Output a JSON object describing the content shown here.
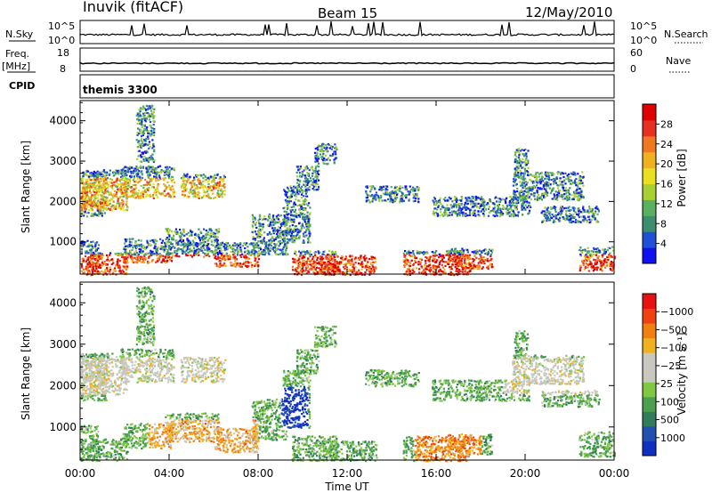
{
  "header": {
    "station": "Inuvik (fitACF)",
    "beam": "Beam 15",
    "date": "12/May/2010"
  },
  "strips": {
    "nsky_label": "N.Sky",
    "nsky_ticks": [
      "10^5",
      "10^0"
    ],
    "nsearch_label": "N.Search",
    "nsearch_ticks": [
      "10^5",
      "10^0"
    ],
    "freq_label": "Freq.",
    "freq_unit": "[MHz]",
    "freq_ticks": [
      "18",
      "8"
    ],
    "nave_label": "Nave",
    "nave_ticks": [
      "60",
      "0"
    ],
    "cpid_label": "CPID",
    "cpid_value": "themis 3300"
  },
  "chart_data": [
    {
      "type": "heatmap",
      "quantity": "Power",
      "ylabel": "Slant Range [km]",
      "yticks": [
        1000,
        2000,
        3000,
        4000
      ],
      "ylim": [
        200,
        4500
      ],
      "xlim": [
        0,
        24
      ],
      "colorbar": {
        "label": "Power [dB]",
        "ticks": [
          "4",
          "8",
          "12",
          "16",
          "20",
          "24",
          "28"
        ],
        "colors": [
          "#1010f0",
          "#2050d8",
          "#3b8f6e",
          "#58b060",
          "#a8d030",
          "#e8e020",
          "#f0b020",
          "#f07820",
          "#e83020",
          "#e00000"
        ]
      }
    },
    {
      "type": "heatmap",
      "quantity": "Velocity",
      "ylabel": "Slant Range [km]",
      "yticks": [
        1000,
        2000,
        3000,
        4000
      ],
      "ylim": [
        200,
        4500
      ],
      "xlim": [
        0,
        24
      ],
      "xlabel": "Time UT",
      "xticks": [
        "00:00",
        "04:00",
        "08:00",
        "12:00",
        "16:00",
        "20:00",
        "00:00"
      ],
      "colorbar": {
        "label": "Velocity [m s⁻¹]",
        "ticks": [
          "1000",
          "500",
          "100",
          "25",
          "−25",
          "−100",
          "−500",
          "−1000"
        ],
        "colors": [
          "#1030c0",
          "#2050b0",
          "#2f7d5a",
          "#4aa050",
          "#7fc840",
          "#c8c8c0",
          "#c8c8c0",
          "#f0b020",
          "#f08010",
          "#f04010",
          "#e81010"
        ]
      }
    }
  ]
}
